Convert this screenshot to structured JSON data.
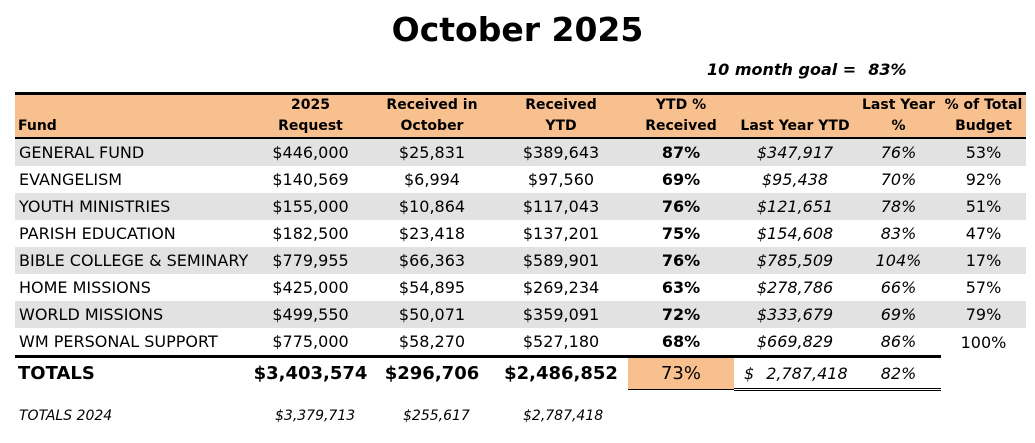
{
  "title": "October 2025",
  "goal": {
    "label": "10 month goal =",
    "value": "83%"
  },
  "headers": {
    "fund": "Fund",
    "request": [
      "2025",
      "Request"
    ],
    "received_month": [
      "Received in",
      "October"
    ],
    "received_ytd": [
      "Received",
      "YTD"
    ],
    "ytd_pct": [
      "YTD %",
      "Received"
    ],
    "last_year_ytd": "Last Year YTD",
    "last_year_pct": [
      "Last Year",
      "%"
    ],
    "pct_total_budget": [
      "% of Total",
      "Budget"
    ]
  },
  "rows": [
    {
      "fund": "GENERAL FUND",
      "request": "$446,000",
      "received_month": "$25,831",
      "received_ytd": "$389,643",
      "ytd_pct": "87%",
      "last_year_ytd": "$347,917",
      "last_year_pct": "76%",
      "pct_total_budget": "53%"
    },
    {
      "fund": "EVANGELISM",
      "request": "$140,569",
      "received_month": "$6,994",
      "received_ytd": "$97,560",
      "ytd_pct": "69%",
      "last_year_ytd": "$95,438",
      "last_year_pct": "70%",
      "pct_total_budget": "92%"
    },
    {
      "fund": "YOUTH MINISTRIES",
      "request": "$155,000",
      "received_month": "$10,864",
      "received_ytd": "$117,043",
      "ytd_pct": "76%",
      "last_year_ytd": "$121,651",
      "last_year_pct": "78%",
      "pct_total_budget": "51%"
    },
    {
      "fund": "PARISH EDUCATION",
      "request": "$182,500",
      "received_month": "$23,418",
      "received_ytd": "$137,201",
      "ytd_pct": "75%",
      "last_year_ytd": "$154,608",
      "last_year_pct": "83%",
      "pct_total_budget": "47%"
    },
    {
      "fund": "BIBLE COLLEGE & SEMINARY",
      "request": "$779,955",
      "received_month": "$66,363",
      "received_ytd": "$589,901",
      "ytd_pct": "76%",
      "last_year_ytd": "$785,509",
      "last_year_pct": "104%",
      "pct_total_budget": "17%"
    },
    {
      "fund": "HOME MISSIONS",
      "request": "$425,000",
      "received_month": "$54,895",
      "received_ytd": "$269,234",
      "ytd_pct": "63%",
      "last_year_ytd": "$278,786",
      "last_year_pct": "66%",
      "pct_total_budget": "57%"
    },
    {
      "fund": "WORLD MISSIONS",
      "request": "$499,550",
      "received_month": "$50,071",
      "received_ytd": "$359,091",
      "ytd_pct": "72%",
      "last_year_ytd": "$333,679",
      "last_year_pct": "69%",
      "pct_total_budget": "79%"
    },
    {
      "fund": "WM PERSONAL SUPPORT",
      "request": "$775,000",
      "received_month": "$58,270",
      "received_ytd": "$527,180",
      "ytd_pct": "68%",
      "last_year_ytd": "$669,829",
      "last_year_pct": "86%",
      "pct_total_budget": "100%"
    }
  ],
  "totals": {
    "label": "TOTALS",
    "request": "$3,403,574",
    "received_month": "$296,706",
    "received_ytd": "$2,486,852",
    "ytd_pct": "73%",
    "last_year_ytd_symbol": "$",
    "last_year_ytd": "2,787,418",
    "last_year_pct": "82%"
  },
  "prior_totals": {
    "label": "TOTALS 2024",
    "request": "$3,379,713",
    "received_month": "$255,617",
    "received_ytd": "$2,787,418"
  },
  "colors": {
    "header_bg": "#f9c08f",
    "row_shade": "#e2e2e2"
  }
}
